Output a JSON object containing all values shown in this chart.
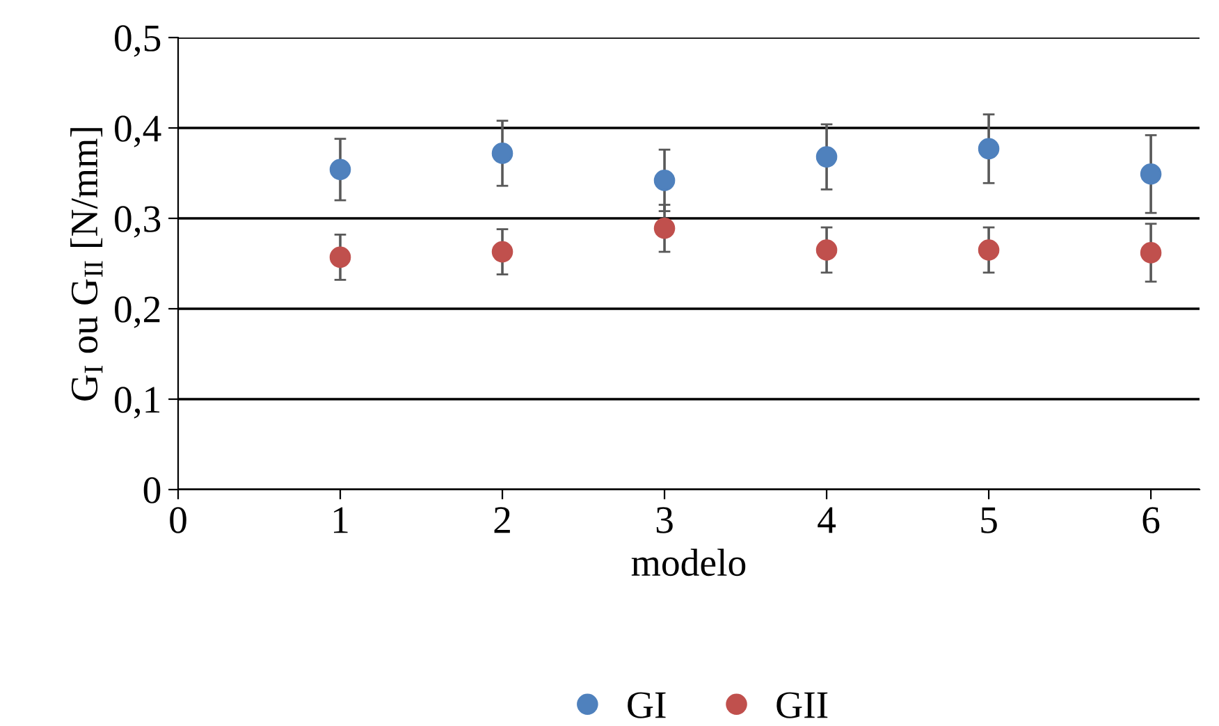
{
  "chart_data": {
    "type": "scatter",
    "xlabel": "modelo",
    "ylabel": "G$_{I}$ ou G$_{II}$ [N/mm]",
    "x": [
      1,
      2,
      3,
      4,
      5,
      6
    ],
    "series": [
      {
        "name": "GI",
        "color": "#4f81bd",
        "values": [
          0.354,
          0.372,
          0.342,
          0.368,
          0.377,
          0.349
        ],
        "errors": [
          0.034,
          0.036,
          0.034,
          0.036,
          0.038,
          0.043
        ]
      },
      {
        "name": "GII",
        "color": "#c0504d",
        "values": [
          0.257,
          0.263,
          0.289,
          0.265,
          0.265,
          0.262
        ],
        "errors": [
          0.025,
          0.025,
          0.026,
          0.025,
          0.025,
          0.032
        ]
      }
    ],
    "xlim": [
      0,
      6.3
    ],
    "xticks": [
      0,
      1,
      2,
      3,
      4,
      5,
      6
    ],
    "ylim": [
      0,
      0.5
    ],
    "yticks": [
      0,
      {
        "value": 0.1,
        "label": "0,1"
      },
      {
        "value": 0.2,
        "label": "0,2"
      },
      {
        "value": 0.3,
        "label": "0,3"
      },
      {
        "value": 0.4,
        "label": "0,4"
      },
      {
        "value": 0.5,
        "label": "0,5"
      }
    ],
    "grid": "y",
    "legend": "bottom",
    "marker": "circle"
  }
}
